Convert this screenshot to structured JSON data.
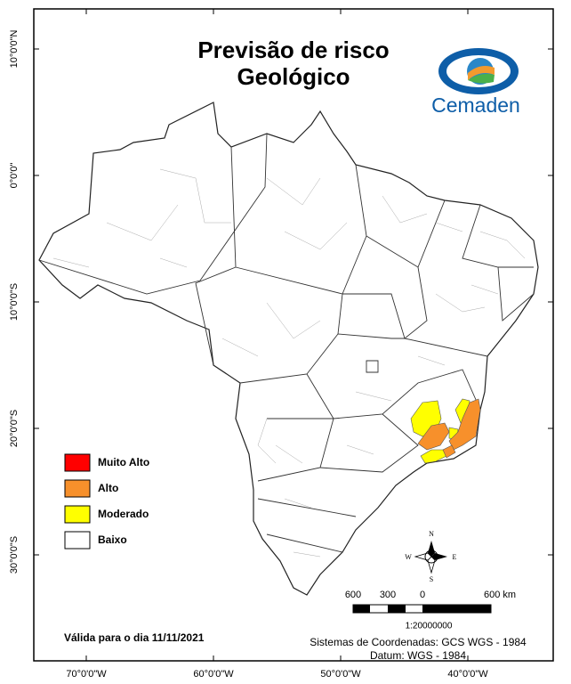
{
  "header": {
    "title_lines": [
      "Previsão de risco",
      "Geológico"
    ]
  },
  "logo": {
    "text": "Cemaden"
  },
  "legend": {
    "items": [
      {
        "label": "Muito Alto",
        "color": "#ff0000"
      },
      {
        "label": "Alto",
        "color": "#f7902b"
      },
      {
        "label": "Moderado",
        "color": "#ffff00"
      },
      {
        "label": "Baixo",
        "color": "#ffffff"
      }
    ]
  },
  "graticule": {
    "latitude": [
      {
        "value": 10,
        "label": "10°0'0\"N"
      },
      {
        "value": 0,
        "label": "0°0'0\""
      },
      {
        "value": -10,
        "label": "10°0'0\"S"
      },
      {
        "value": -20,
        "label": "20°0'0\"S"
      },
      {
        "value": -30,
        "label": "30°0'0\"S"
      }
    ],
    "longitude": [
      {
        "value": -70,
        "label": "70°0'0\"W"
      },
      {
        "value": -60,
        "label": "60°0'0\"W"
      },
      {
        "value": -50,
        "label": "50°0'0\"W"
      },
      {
        "value": -40,
        "label": "40°0'0\"W"
      }
    ]
  },
  "compass": {
    "north": "N",
    "south": "S",
    "east": "E",
    "west": "W"
  },
  "scale_bar": {
    "labels": [
      "600",
      "300",
      "0",
      "600 km"
    ],
    "ratio": "1:20000000"
  },
  "footer": {
    "validity": "Válida para o dia 11/11/2021",
    "coordinate_system": "Sistemas de Coordenadas: GCS WGS - 1984",
    "datum": "Datum: WGS - 1984"
  }
}
